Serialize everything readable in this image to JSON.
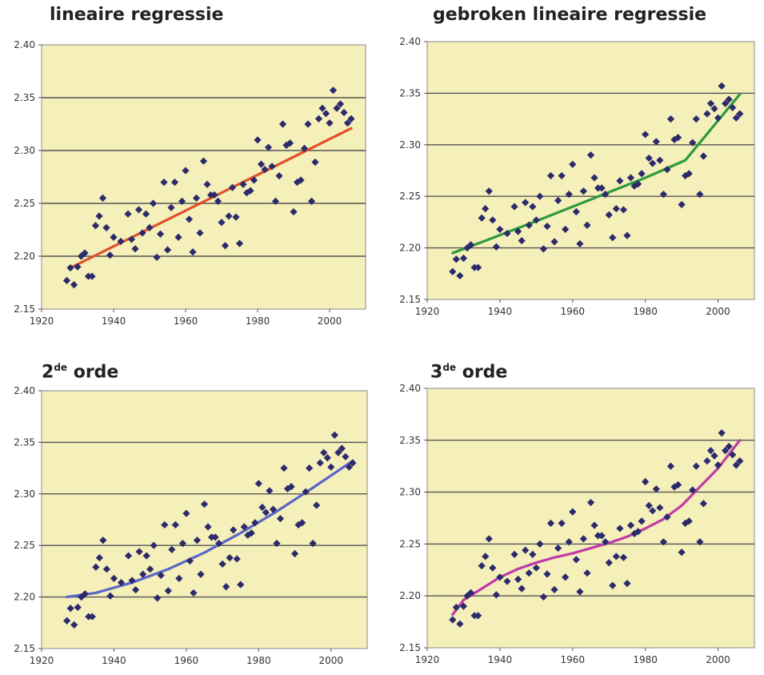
{
  "chart_data": [
    {
      "type": "scatter",
      "title": "lineaire regressie",
      "title_sup": "",
      "fit_color": "#e0502a",
      "fit": [
        [
          1928,
          2.189
        ],
        [
          2006,
          2.321
        ]
      ]
    },
    {
      "type": "scatter",
      "title": "gebroken lineaire regressie",
      "title_sup": "",
      "fit_color": "#2e9a3e",
      "fit": [
        [
          1927,
          2.195
        ],
        [
          1936,
          2.207
        ],
        [
          1950,
          2.226
        ],
        [
          1965,
          2.247
        ],
        [
          1980,
          2.268
        ],
        [
          1991,
          2.285
        ],
        [
          2006,
          2.349
        ]
      ]
    },
    {
      "type": "scatter",
      "title_num": "2",
      "title_sup": "de",
      "title": " orde",
      "fit_color": "#5a66c8",
      "fit": [
        [
          1927,
          2.2
        ],
        [
          1935,
          2.204
        ],
        [
          1945,
          2.214
        ],
        [
          1955,
          2.227
        ],
        [
          1965,
          2.243
        ],
        [
          1975,
          2.262
        ],
        [
          1985,
          2.283
        ],
        [
          1995,
          2.306
        ],
        [
          2006,
          2.332
        ]
      ]
    },
    {
      "type": "scatter",
      "title_num": "3",
      "title_sup": "de",
      "title": " orde",
      "fit_color": "#c03aa8",
      "fit": [
        [
          1927,
          2.182
        ],
        [
          1930,
          2.196
        ],
        [
          1935,
          2.207
        ],
        [
          1940,
          2.218
        ],
        [
          1945,
          2.226
        ],
        [
          1950,
          2.232
        ],
        [
          1955,
          2.237
        ],
        [
          1960,
          2.241
        ],
        [
          1965,
          2.246
        ],
        [
          1970,
          2.251
        ],
        [
          1975,
          2.257
        ],
        [
          1980,
          2.265
        ],
        [
          1985,
          2.274
        ],
        [
          1990,
          2.287
        ],
        [
          1995,
          2.305
        ],
        [
          2000,
          2.323
        ],
        [
          2006,
          2.35
        ]
      ]
    }
  ],
  "shared": {
    "xlim": [
      1920,
      2010
    ],
    "ylim": [
      2.15,
      2.4
    ],
    "x_ticks": [
      "1920",
      "1940",
      "1960",
      "1980",
      "2000"
    ],
    "y_ticks": [
      "2.15",
      "2.20",
      "2.25",
      "2.30",
      "2.35",
      "2.40"
    ],
    "grid": true,
    "marker_color": "#2b2a6b",
    "background_color": "#f5efba",
    "points": [
      [
        1927,
        2.177
      ],
      [
        1928,
        2.189
      ],
      [
        1929,
        2.173
      ],
      [
        1930,
        2.19
      ],
      [
        1931,
        2.2
      ],
      [
        1932,
        2.203
      ],
      [
        1933,
        2.181
      ],
      [
        1934,
        2.181
      ],
      [
        1935,
        2.229
      ],
      [
        1936,
        2.238
      ],
      [
        1937,
        2.255
      ],
      [
        1938,
        2.227
      ],
      [
        1939,
        2.201
      ],
      [
        1940,
        2.218
      ],
      [
        1942,
        2.214
      ],
      [
        1944,
        2.24
      ],
      [
        1945,
        2.216
      ],
      [
        1946,
        2.207
      ],
      [
        1947,
        2.244
      ],
      [
        1948,
        2.222
      ],
      [
        1949,
        2.24
      ],
      [
        1950,
        2.227
      ],
      [
        1951,
        2.25
      ],
      [
        1952,
        2.199
      ],
      [
        1953,
        2.221
      ],
      [
        1954,
        2.27
      ],
      [
        1955,
        2.206
      ],
      [
        1956,
        2.246
      ],
      [
        1957,
        2.27
      ],
      [
        1958,
        2.218
      ],
      [
        1959,
        2.252
      ],
      [
        1960,
        2.281
      ],
      [
        1961,
        2.235
      ],
      [
        1962,
        2.204
      ],
      [
        1963,
        2.255
      ],
      [
        1964,
        2.222
      ],
      [
        1965,
        2.29
      ],
      [
        1966,
        2.268
      ],
      [
        1967,
        2.258
      ],
      [
        1968,
        2.258
      ],
      [
        1969,
        2.252
      ],
      [
        1970,
        2.232
      ],
      [
        1971,
        2.21
      ],
      [
        1972,
        2.238
      ],
      [
        1973,
        2.265
      ],
      [
        1974,
        2.237
      ],
      [
        1975,
        2.212
      ],
      [
        1976,
        2.268
      ],
      [
        1977,
        2.26
      ],
      [
        1978,
        2.262
      ],
      [
        1979,
        2.272
      ],
      [
        1980,
        2.31
      ],
      [
        1981,
        2.287
      ],
      [
        1982,
        2.282
      ],
      [
        1983,
        2.303
      ],
      [
        1984,
        2.285
      ],
      [
        1985,
        2.252
      ],
      [
        1986,
        2.276
      ],
      [
        1987,
        2.325
      ],
      [
        1988,
        2.305
      ],
      [
        1989,
        2.307
      ],
      [
        1990,
        2.242
      ],
      [
        1991,
        2.27
      ],
      [
        1992,
        2.272
      ],
      [
        1993,
        2.302
      ],
      [
        1994,
        2.325
      ],
      [
        1995,
        2.252
      ],
      [
        1996,
        2.289
      ],
      [
        1997,
        2.33
      ],
      [
        1998,
        2.34
      ],
      [
        1999,
        2.335
      ],
      [
        2000,
        2.326
      ],
      [
        2001,
        2.357
      ],
      [
        2002,
        2.34
      ],
      [
        2003,
        2.344
      ],
      [
        2004,
        2.336
      ],
      [
        2005,
        2.326
      ],
      [
        2006,
        2.33
      ]
    ]
  }
}
